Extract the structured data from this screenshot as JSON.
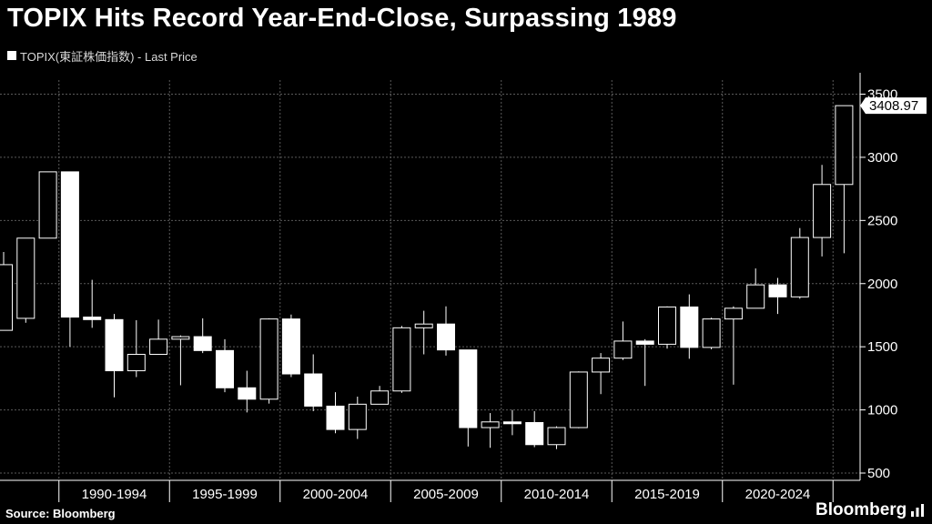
{
  "header": {
    "title": "TOPIX Hits Record Year-End-Close, Surpassing 1989"
  },
  "legend": {
    "label": "TOPIX(東証株価指数) - Last Price"
  },
  "footer": {
    "source": "Source: Bloomberg",
    "logo": "Bloomberg"
  },
  "colors": {
    "background": "#000000",
    "candle": "#ffffff",
    "grid": "#5a5a5a"
  },
  "chart_data": {
    "type": "candlestick",
    "series_name": "TOPIX(東証株価指数) - Last Price",
    "period": "yearly",
    "y_ticks": [
      500,
      1000,
      1500,
      2000,
      2500,
      3000,
      3500
    ],
    "ylim": [
      430,
      3650
    ],
    "x_groups": [
      "1990-1994",
      "1995-1999",
      "2000-2004",
      "2005-2009",
      "2010-2014",
      "2015-2019",
      "2020-2024"
    ],
    "grid": true,
    "last_value_label": "3408.97",
    "candles": [
      {
        "year": 1987,
        "open": 1630,
        "high": 2250,
        "low": 1650,
        "close": 2150
      },
      {
        "year": 1988,
        "open": 1725,
        "high": 2360,
        "low": 1690,
        "close": 2360
      },
      {
        "year": 1989,
        "open": 2360,
        "high": 2885,
        "low": 2360,
        "close": 2885
      },
      {
        "year": 1990,
        "open": 2885,
        "high": 2885,
        "low": 1500,
        "close": 1735
      },
      {
        "year": 1991,
        "open": 1735,
        "high": 2030,
        "low": 1650,
        "close": 1715
      },
      {
        "year": 1992,
        "open": 1715,
        "high": 1760,
        "low": 1100,
        "close": 1310
      },
      {
        "year": 1993,
        "open": 1310,
        "high": 1710,
        "low": 1260,
        "close": 1440
      },
      {
        "year": 1994,
        "open": 1440,
        "high": 1715,
        "low": 1445,
        "close": 1560
      },
      {
        "year": 1995,
        "open": 1560,
        "high": 1590,
        "low": 1195,
        "close": 1580
      },
      {
        "year": 1996,
        "open": 1580,
        "high": 1725,
        "low": 1450,
        "close": 1470
      },
      {
        "year": 1997,
        "open": 1470,
        "high": 1560,
        "low": 1140,
        "close": 1175
      },
      {
        "year": 1998,
        "open": 1175,
        "high": 1310,
        "low": 980,
        "close": 1085
      },
      {
        "year": 1999,
        "open": 1085,
        "high": 1725,
        "low": 1050,
        "close": 1720
      },
      {
        "year": 2000,
        "open": 1720,
        "high": 1755,
        "low": 1260,
        "close": 1285
      },
      {
        "year": 2001,
        "open": 1285,
        "high": 1440,
        "low": 990,
        "close": 1030
      },
      {
        "year": 2002,
        "open": 1030,
        "high": 1140,
        "low": 815,
        "close": 845
      },
      {
        "year": 2003,
        "open": 845,
        "high": 1105,
        "low": 770,
        "close": 1045
      },
      {
        "year": 2004,
        "open": 1045,
        "high": 1190,
        "low": 1050,
        "close": 1150
      },
      {
        "year": 2005,
        "open": 1150,
        "high": 1665,
        "low": 1135,
        "close": 1650
      },
      {
        "year": 2006,
        "open": 1650,
        "high": 1785,
        "low": 1440,
        "close": 1680
      },
      {
        "year": 2007,
        "open": 1680,
        "high": 1820,
        "low": 1430,
        "close": 1475
      },
      {
        "year": 2008,
        "open": 1475,
        "high": 1470,
        "low": 710,
        "close": 860
      },
      {
        "year": 2009,
        "open": 860,
        "high": 975,
        "low": 700,
        "close": 905
      },
      {
        "year": 2010,
        "open": 905,
        "high": 1000,
        "low": 800,
        "close": 900
      },
      {
        "year": 2011,
        "open": 900,
        "high": 990,
        "low": 705,
        "close": 725
      },
      {
        "year": 2012,
        "open": 725,
        "high": 870,
        "low": 690,
        "close": 860
      },
      {
        "year": 2013,
        "open": 860,
        "high": 1305,
        "low": 855,
        "close": 1300
      },
      {
        "year": 2014,
        "open": 1300,
        "high": 1450,
        "low": 1125,
        "close": 1410
      },
      {
        "year": 2015,
        "open": 1410,
        "high": 1700,
        "low": 1395,
        "close": 1545
      },
      {
        "year": 2016,
        "open": 1545,
        "high": 1560,
        "low": 1190,
        "close": 1520
      },
      {
        "year": 2017,
        "open": 1520,
        "high": 1820,
        "low": 1485,
        "close": 1815
      },
      {
        "year": 2018,
        "open": 1815,
        "high": 1915,
        "low": 1405,
        "close": 1495
      },
      {
        "year": 2019,
        "open": 1495,
        "high": 1730,
        "low": 1480,
        "close": 1720
      },
      {
        "year": 2020,
        "open": 1720,
        "high": 1820,
        "low": 1200,
        "close": 1805
      },
      {
        "year": 2021,
        "open": 1805,
        "high": 2120,
        "low": 1810,
        "close": 1990
      },
      {
        "year": 2022,
        "open": 1990,
        "high": 2045,
        "low": 1760,
        "close": 1895
      },
      {
        "year": 2023,
        "open": 1895,
        "high": 2440,
        "low": 1880,
        "close": 2365
      },
      {
        "year": 2024,
        "open": 2365,
        "high": 2940,
        "low": 2215,
        "close": 2785
      },
      {
        "year": 2025,
        "open": 2785,
        "high": 3410,
        "low": 2240,
        "close": 3408.97
      }
    ]
  }
}
